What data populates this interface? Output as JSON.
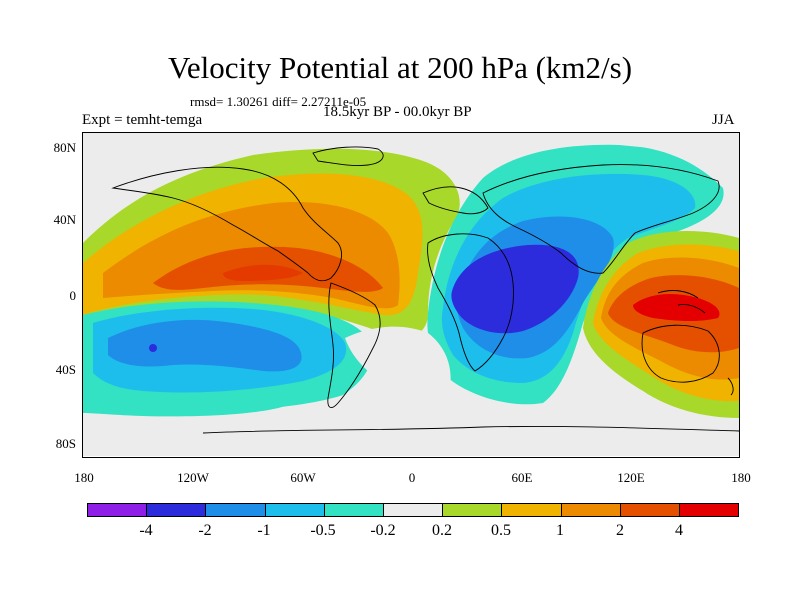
{
  "title": "Velocity Potential at 200 hPa (km2/s)",
  "stats": "rmsd= 1.30261 diff= 2.27211e-05",
  "period": "18.5kyr BP - 00.0kyr BP",
  "expt": "Expt = temht-temga",
  "season": "JJA",
  "map": {
    "lat_labels": [
      "80N",
      "40N",
      "0",
      "40S",
      "80S"
    ],
    "lon_labels": [
      "180",
      "120W",
      "60W",
      "0",
      "60E",
      "120E",
      "180"
    ]
  },
  "colorbar": {
    "colors": [
      "#8f1ee6",
      "#2c2cdc",
      "#1e8ee8",
      "#1ebeec",
      "#32e2c2",
      "#ececec",
      "#a8d82a",
      "#f0b400",
      "#ec8a00",
      "#e45000",
      "#e40000"
    ],
    "labels": [
      "-4",
      "-2",
      "-1",
      "-0.5",
      "-0.2",
      "0.2",
      "0.5",
      "1",
      "2",
      "4"
    ]
  }
}
